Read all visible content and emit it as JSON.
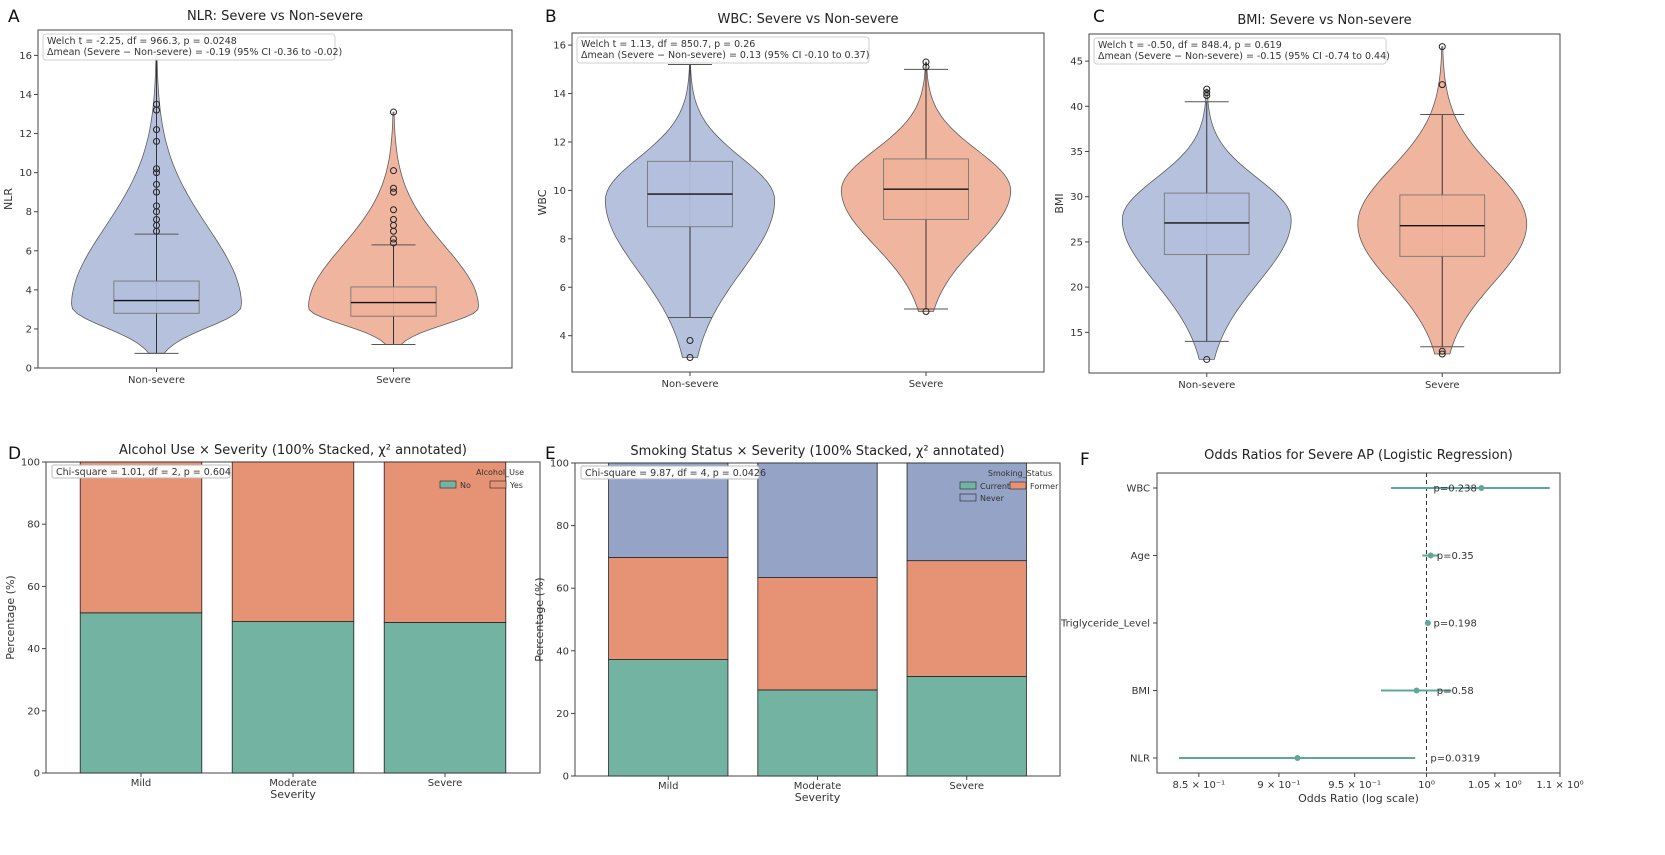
{
  "figure": {
    "panels": [
      "A",
      "B",
      "C",
      "D",
      "E",
      "F"
    ]
  },
  "chart_data": [
    {
      "id": "A",
      "type": "violin",
      "title": "NLR: Severe vs Non-severe",
      "ylabel": "NLR",
      "xlabel": "",
      "ylim": [
        0,
        17.3
      ],
      "yticks": [
        0,
        2,
        4,
        6,
        8,
        10,
        12,
        14,
        16
      ],
      "annotation": [
        "Welch t = -2.25, df = 966.3, p = 0.0248",
        "Δmean (Severe − Non-severe) = -0.19 (95% CI -0.36 to -0.02)"
      ],
      "groups": [
        {
          "name": "Non-severe",
          "color": "#b3bfdc",
          "q1": 2.8,
          "median": 3.45,
          "q3": 4.45,
          "whisker_low": 0.75,
          "whisker_high": 6.85,
          "min": 0.75,
          "max": 16.0,
          "peak": 3.2,
          "outliers": [
            7.0,
            7.3,
            7.6,
            8.0,
            8.3,
            9.0,
            9.4,
            10.0,
            10.2,
            11.6,
            12.2,
            13.2,
            13.5
          ]
        },
        {
          "name": "Severe",
          "color": "#f0b29a",
          "q1": 2.65,
          "median": 3.35,
          "q3": 4.15,
          "whisker_low": 1.2,
          "whisker_high": 6.3,
          "min": 1.2,
          "max": 13.1,
          "peak": 3.1,
          "outliers": [
            6.4,
            6.6,
            7.0,
            7.3,
            7.6,
            8.1,
            9.0,
            9.2,
            10.1,
            13.1
          ]
        }
      ]
    },
    {
      "id": "B",
      "type": "violin",
      "title": "WBC: Severe vs Non-severe",
      "ylabel": "WBC",
      "xlabel": "",
      "ylim": [
        2.5,
        16.5
      ],
      "yticks": [
        4,
        6,
        8,
        10,
        12,
        14,
        16
      ],
      "annotation": [
        "Welch t = 1.13, df = 850.7, p = 0.26",
        "Δmean (Severe − Non-severe) = 0.13 (95% CI -0.10 to 0.37)"
      ],
      "groups": [
        {
          "name": "Non-severe",
          "color": "#b3bfdc",
          "q1": 8.5,
          "median": 9.85,
          "q3": 11.2,
          "whisker_low": 4.75,
          "whisker_high": 15.2,
          "min": 3.1,
          "max": 15.2,
          "peak": 9.6,
          "outliers": [
            3.1,
            3.8
          ]
        },
        {
          "name": "Severe",
          "color": "#f0b29a",
          "q1": 8.8,
          "median": 10.05,
          "q3": 11.3,
          "whisker_low": 5.1,
          "whisker_high": 15.0,
          "min": 5.0,
          "max": 15.3,
          "peak": 10.0,
          "outliers": [
            5.0,
            15.1,
            15.3
          ]
        }
      ]
    },
    {
      "id": "C",
      "type": "violin",
      "title": "BMI: Severe vs Non-severe",
      "ylabel": "BMI",
      "xlabel": "",
      "ylim": [
        10.5,
        48
      ],
      "yticks": [
        15,
        20,
        25,
        30,
        35,
        40,
        45
      ],
      "annotation": [
        "Welch t = -0.50, df = 848.4, p = 0.619",
        "Δmean (Severe − Non-severe) = -0.15 (95% CI -0.74 to 0.44)"
      ],
      "groups": [
        {
          "name": "Non-severe",
          "color": "#b3bfdc",
          "q1": 23.6,
          "median": 27.1,
          "q3": 30.4,
          "whisker_low": 14.0,
          "whisker_high": 40.5,
          "min": 12.0,
          "max": 41.9,
          "peak": 27.5,
          "outliers": [
            12.0,
            41.2,
            41.5,
            41.9
          ]
        },
        {
          "name": "Severe",
          "color": "#f0b29a",
          "q1": 23.4,
          "median": 26.8,
          "q3": 30.2,
          "whisker_low": 13.4,
          "whisker_high": 39.1,
          "min": 12.6,
          "max": 46.6,
          "peak": 27.0,
          "outliers": [
            12.6,
            12.9,
            42.4,
            46.6
          ]
        }
      ]
    },
    {
      "id": "D",
      "type": "bar",
      "stacked": true,
      "title": "Alcohol Use × Severity (100% Stacked, χ² annotated)",
      "xlabel": "Severity",
      "ylabel": "Percentage (%)",
      "ylim": [
        0,
        100
      ],
      "yticks": [
        0,
        20,
        40,
        60,
        80,
        100
      ],
      "categories": [
        "Mild",
        "Moderate",
        "Severe"
      ],
      "annotation": "Chi-square = 1.01, df = 2, p = 0.604",
      "legend": {
        "title": "Alcohol_Use",
        "position": "top-right"
      },
      "series": [
        {
          "name": "No",
          "color": "#72b3a2",
          "values": [
            51.5,
            48.7,
            48.4
          ]
        },
        {
          "name": "Yes",
          "color": "#e69375",
          "values": [
            48.5,
            51.3,
            51.6
          ]
        }
      ]
    },
    {
      "id": "E",
      "type": "bar",
      "stacked": true,
      "title": "Smoking Status × Severity (100% Stacked, χ² annotated)",
      "xlabel": "Severity",
      "ylabel": "Percentage (%)",
      "ylim": [
        0,
        100
      ],
      "yticks": [
        0,
        20,
        40,
        60,
        80,
        100
      ],
      "categories": [
        "Mild",
        "Moderate",
        "Severe"
      ],
      "annotation": "Chi-square = 9.87, df = 4, p = 0.0426",
      "legend": {
        "title": "Smoking_Status",
        "position": "top-right"
      },
      "series": [
        {
          "name": "Current",
          "color": "#72b3a2",
          "values": [
            37.2,
            27.5,
            31.8
          ]
        },
        {
          "name": "Former",
          "color": "#e69375",
          "values": [
            32.6,
            35.9,
            37.0
          ]
        },
        {
          "name": "Never",
          "color": "#95a3c6",
          "values": [
            30.2,
            36.6,
            31.2
          ]
        }
      ]
    },
    {
      "id": "F",
      "type": "forest",
      "title": "Odds Ratios for Severe AP (Logistic Regression)",
      "xlabel": "Odds Ratio (log scale)",
      "ylabel": "",
      "xscale": "log",
      "xlim": [
        0.825,
        1.1
      ],
      "xticks": [
        0.85,
        0.9,
        0.95,
        1.0,
        1.05,
        1.1
      ],
      "xtick_labels": [
        "8.5 × 10⁻¹",
        "9 × 10⁻¹",
        "9.5 × 10⁻¹",
        "10⁰",
        "1.05 × 10⁰",
        "1.1 × 10⁰"
      ],
      "reference_line": 1.0,
      "color": "#5fa898",
      "rows": [
        {
          "label": "WBC",
          "or": 1.04,
          "ci_low": 0.975,
          "ci_high": 1.092,
          "p": "p=0.238"
        },
        {
          "label": "Age",
          "or": 1.003,
          "ci_low": 0.997,
          "ci_high": 1.009,
          "p": "p=0.35"
        },
        {
          "label": "Triglyceride_Level",
          "or": 1.001,
          "ci_low": 0.999,
          "ci_high": 1.003,
          "p": "p=0.198"
        },
        {
          "label": "BMI",
          "or": 0.993,
          "ci_low": 0.968,
          "ci_high": 1.018,
          "p": "p=0.58"
        },
        {
          "label": "NLR",
          "or": 0.912,
          "ci_low": 0.838,
          "ci_high": 0.992,
          "p": "p=0.0319"
        }
      ]
    }
  ]
}
